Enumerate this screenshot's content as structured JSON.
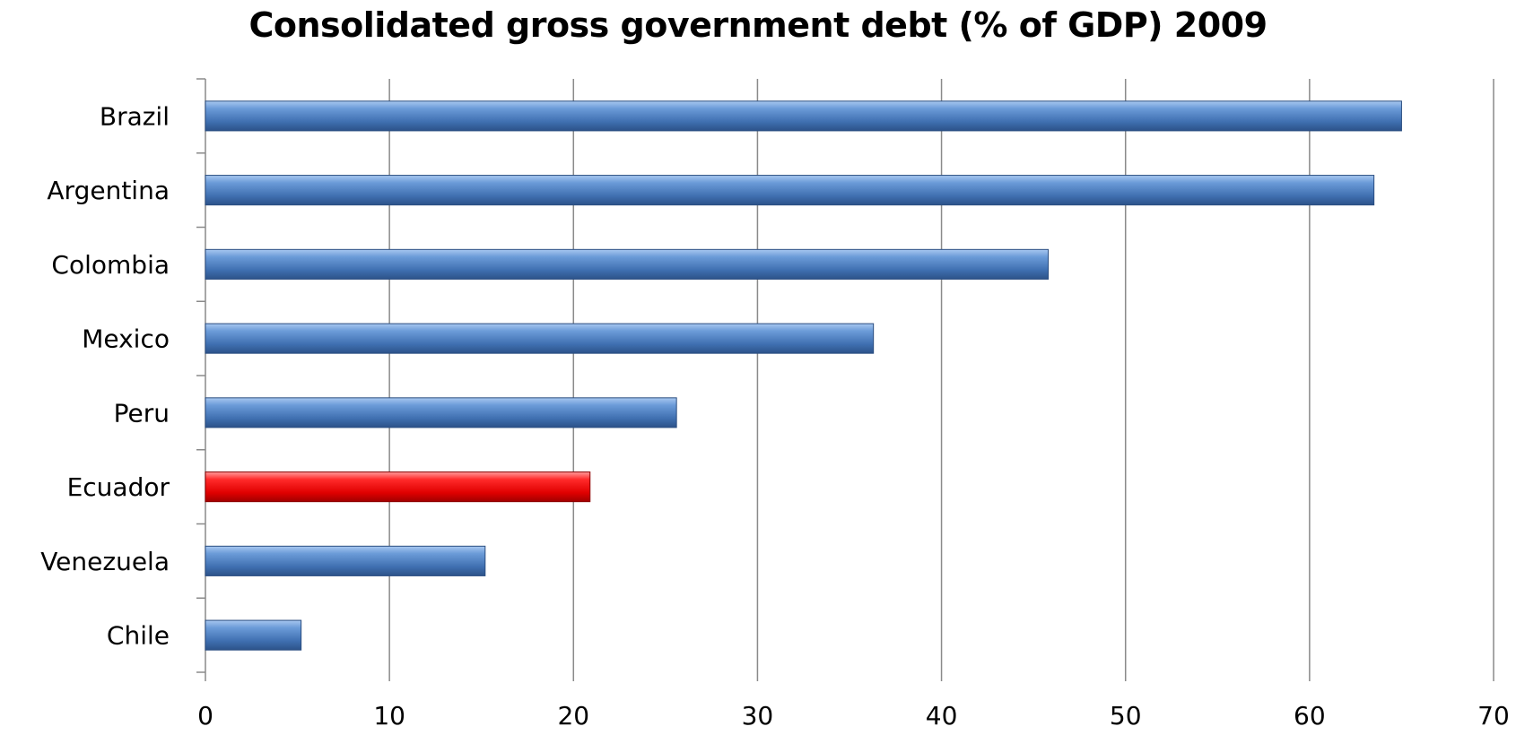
{
  "chart_data": {
    "type": "bar",
    "orientation": "horizontal",
    "title": "Consolidated gross government debt (% of GDP) 2009",
    "xlabel": "",
    "ylabel": "",
    "categories": [
      "Brazil",
      "Argentina",
      "Colombia",
      "Mexico",
      "Peru",
      "Ecuador",
      "Venezuela",
      "Chile"
    ],
    "values": [
      65,
      63.5,
      45.8,
      36.3,
      25.6,
      20.9,
      15.2,
      5.2
    ],
    "bar_colors": [
      "#4f81bd",
      "#4f81bd",
      "#4f81bd",
      "#4f81bd",
      "#4f81bd",
      "#ee1111",
      "#4f81bd",
      "#4f81bd"
    ],
    "xlim": [
      0,
      70
    ],
    "xticks": [
      0,
      10,
      20,
      30,
      40,
      50,
      60,
      70
    ],
    "grid": "vertical",
    "legend": "none"
  }
}
